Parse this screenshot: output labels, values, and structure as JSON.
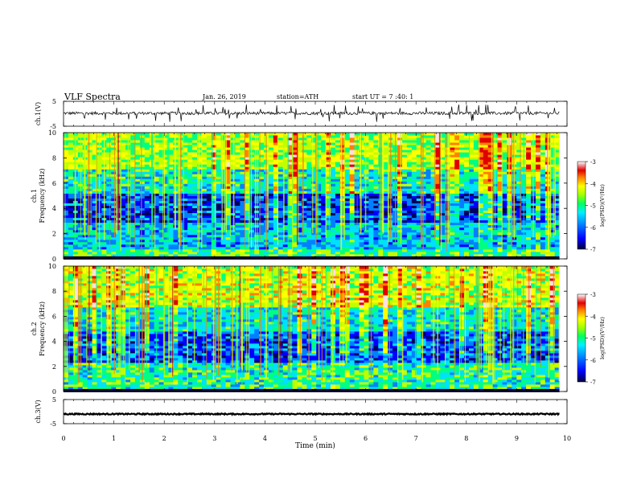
{
  "header": {
    "title": "VLF  Spectra",
    "date": "Jan. 26, 2019",
    "station": "station=ATH",
    "start": "start  UT  =   7  :40: 1"
  },
  "chart_data": [
    {
      "type": "line",
      "name": "ch1-waveform",
      "ylabel": "ch.1(V)",
      "ylim": [
        -5,
        5
      ],
      "yticks": [
        "5",
        "-5"
      ],
      "x_range_min": [
        0,
        9.85
      ],
      "baseline_v": 0.2,
      "amplitude_v": 0.6,
      "spike_v": 3.5
    },
    {
      "type": "heatmap",
      "name": "ch1-spectrogram",
      "ylabel": "ch.1\nFrequency  (kHz)",
      "ylabel_lines": [
        "ch.1",
        "Frequency  (kHz)"
      ],
      "ylim": [
        0,
        10
      ],
      "yticks": [
        "0",
        "2",
        "4",
        "6",
        "8",
        "10"
      ],
      "x_range_min": [
        0,
        9.85
      ],
      "colorbar": {
        "label": "log(PSD)(V²/Hz)",
        "range": [
          -7,
          -3
        ],
        "ticks": [
          "-3",
          "-4",
          "-5",
          "-6",
          "-7"
        ]
      },
      "bands_khz": [
        {
          "from": 0,
          "to": 0.8,
          "level": -5.2
        },
        {
          "from": 0.8,
          "to": 2.8,
          "level": -5.8
        },
        {
          "from": 2.8,
          "to": 5.2,
          "level": -6.4
        },
        {
          "from": 5.2,
          "to": 7.2,
          "level": -5.5
        },
        {
          "from": 7.2,
          "to": 10,
          "level": -4.8
        }
      ]
    },
    {
      "type": "heatmap",
      "name": "ch2-spectrogram",
      "ylabel": "ch.2\nFrequency  (kHz)",
      "ylabel_lines": [
        "ch.2",
        "Frequency  (kHz)"
      ],
      "ylim": [
        0,
        10
      ],
      "yticks": [
        "0",
        "2",
        "4",
        "6",
        "8",
        "10"
      ],
      "x_range_min": [
        0,
        9.85
      ],
      "colorbar": {
        "label": "log(PSD)(V²/Hz)",
        "range": [
          -7,
          -3
        ],
        "ticks": [
          "-3",
          "-4",
          "-5",
          "-6",
          "-7"
        ]
      },
      "bands_khz": [
        {
          "from": 0,
          "to": 2.3,
          "level": -5.4
        },
        {
          "from": 2.3,
          "to": 4.8,
          "level": -6.3
        },
        {
          "from": 4.8,
          "to": 6.8,
          "level": -5.6
        },
        {
          "from": 6.8,
          "to": 10,
          "level": -4.6
        }
      ]
    },
    {
      "type": "line",
      "name": "ch3-waveform",
      "ylabel": "ch.3(V)",
      "ylim": [
        -5,
        5
      ],
      "yticks": [
        "5",
        "-5"
      ],
      "x_range_min": [
        0,
        9.85
      ],
      "baseline_v": -1.0,
      "amplitude_v": 0.25,
      "spike_v": 0
    }
  ],
  "x_axis": {
    "label": "Time  (min)",
    "range": [
      0,
      10
    ],
    "ticks": [
      "0",
      "1",
      "2",
      "3",
      "4",
      "5",
      "6",
      "7",
      "8",
      "9",
      "10"
    ]
  },
  "colors": {
    "colormap": [
      "#000060",
      "#0000ff",
      "#0080ff",
      "#00e0ff",
      "#00ff80",
      "#c0ff00",
      "#ffff00",
      "#ff8000",
      "#e00000",
      "#ffe0e0"
    ],
    "axis": "#000000"
  }
}
